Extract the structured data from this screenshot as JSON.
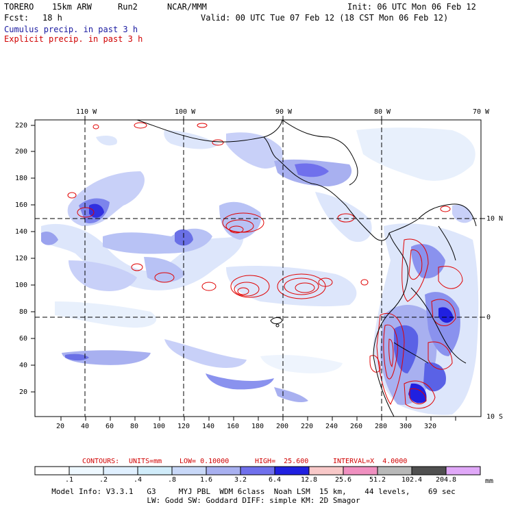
{
  "header": {
    "model": "TORERO",
    "resolution": "15km ARW",
    "run": "Run2",
    "org": "NCAR/MMM",
    "init": "Init: 06 UTC Mon 06 Feb 12",
    "fcst_label": "Fcst:",
    "fcst_value": "18 h",
    "valid": "Valid: 00 UTC Tue 07 Feb 12 (18 CST Mon 06 Feb 12)"
  },
  "legend": {
    "cumulus": "Cumulus precip. in past 3 h",
    "explicit": "Explicit precip. in past 3 h"
  },
  "top_lon_labels": [
    "110 W",
    "100 W",
    "90 W",
    "80 W",
    "70 W"
  ],
  "right_lat_labels": [
    "10 N",
    "0",
    "10 S"
  ],
  "y_grid_labels": [
    "220",
    "200",
    "180",
    "160",
    "140",
    "120",
    "100",
    "80",
    "60",
    "40",
    "20"
  ],
  "x_grid_labels": [
    "20",
    "40",
    "60",
    "80",
    "100",
    "120",
    "140",
    "160",
    "180",
    "200",
    "220",
    "240",
    "260",
    "280",
    "300",
    "320"
  ],
  "contours_line": {
    "label": "CONTOURS:",
    "units": "UNITS=mm",
    "low": "LOW= 0.10000",
    "high": "HIGH=  25.600",
    "interval": "INTERVAL=X  4.0000"
  },
  "colorbar": {
    "labels": [
      ".1",
      ".2",
      ".4",
      ".8",
      "1.6",
      "3.2",
      "6.4",
      "12.8",
      "25.6",
      "51.2",
      "102.4",
      "204.8"
    ],
    "unit": "mm",
    "colors": [
      "#ffffff",
      "#eef8ff",
      "#e0f0ff",
      "#d0ecfa",
      "#c8d8f8",
      "#a8b0f0",
      "#7070ec",
      "#2020e0",
      "#f8c8c8",
      "#f090c0",
      "#b8b8b8",
      "#505050",
      "#e0a8f8"
    ]
  },
  "footer": {
    "line1": "Model Info: V3.3.1   G3     MYJ PBL  WDM 6class  Noah LSM  15 km,    44 levels,    69 sec",
    "line2": "LW: Godd SW: Goddard DIFF: simple KM: 2D Smagor"
  }
}
